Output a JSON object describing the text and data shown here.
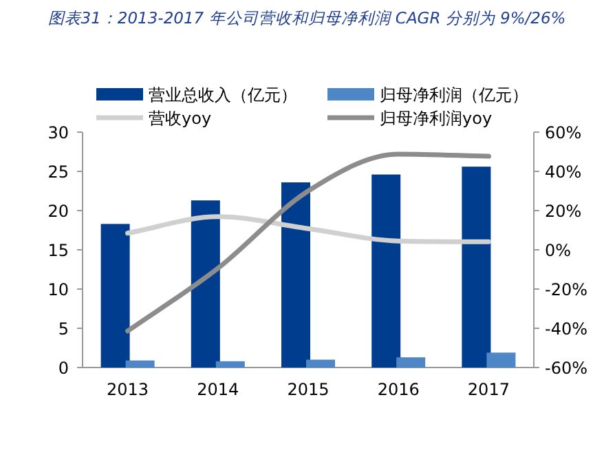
{
  "chart_data": {
    "type": "bar",
    "title": "图表31：2013-2017 年公司营收和归母净利润 CAGR 分别为 9%/26%",
    "categories": [
      "2013",
      "2014",
      "2015",
      "2016",
      "2017"
    ],
    "series": [
      {
        "name": "营业总收入（亿元）",
        "color": "#003d8f",
        "values": [
          18.3,
          21.3,
          23.6,
          24.6,
          25.6
        ]
      },
      {
        "name": "归母净利润（亿元）",
        "color": "#4f86c6",
        "values": [
          0.9,
          0.8,
          1.0,
          1.3,
          1.9
        ]
      },
      {
        "name": "营收yoy",
        "type": "line",
        "axis": "y2",
        "color": "#d0d0d0",
        "values": [
          8.5,
          16.9,
          10.8,
          4.5,
          4.1
        ]
      },
      {
        "name": "归母净利润yoy",
        "type": "line",
        "axis": "y2",
        "color": "#8c8c8c",
        "values": [
          -41.4,
          -9.4,
          30,
          48.8,
          47.7
        ]
      }
    ],
    "ylim": [
      0,
      30
    ],
    "yticks": [
      0,
      5,
      10,
      15,
      20,
      25,
      30
    ],
    "y2lim": [
      -60,
      60
    ],
    "y2ticks": [
      {
        "value": -60,
        "label": "-60%"
      },
      {
        "value": -40,
        "label": "-40%"
      },
      {
        "value": -20,
        "label": "-20%"
      },
      {
        "value": 0,
        "label": "0%"
      },
      {
        "value": 20,
        "label": "20%"
      },
      {
        "value": 40,
        "label": "40%"
      },
      {
        "value": 60,
        "label": "60%"
      }
    ],
    "legend": "top",
    "grid": false
  }
}
